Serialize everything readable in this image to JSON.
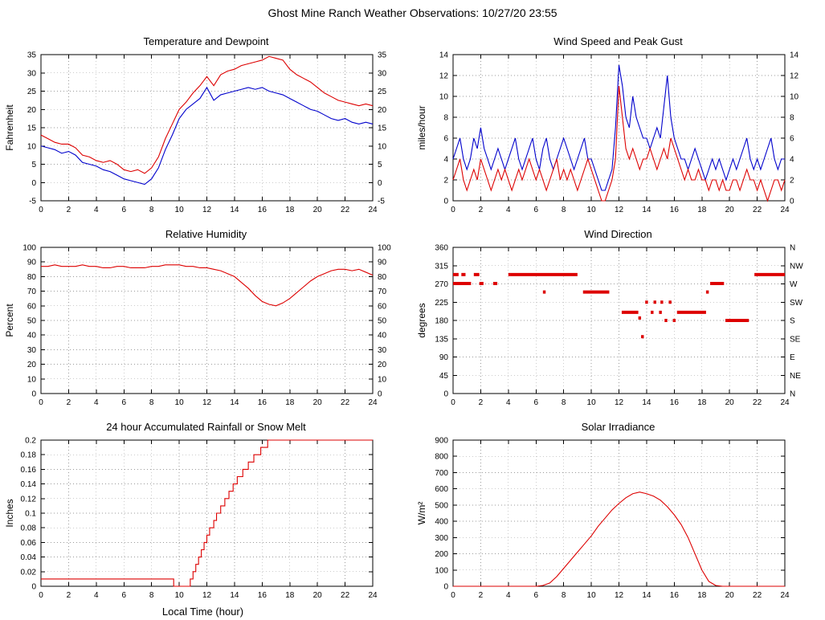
{
  "title": "Ghost Mine Ranch Weather Observations: 10/27/20 23:55",
  "colors": {
    "red": "#dd0000",
    "blue": "#0000cc",
    "grid": "#9a9a9a",
    "frame": "#000000"
  },
  "chart_data": [
    {
      "type": "line",
      "title": "Temperature and Dewpoint",
      "ylabel": "Fahrenheit",
      "xlabel": "",
      "ylim": [
        -5,
        35
      ],
      "ytick_step": 5,
      "xlim": [
        0,
        24
      ],
      "xtick_step": 2,
      "right_mirror": true,
      "legend_position": "none",
      "series": [
        {
          "name": "Temperature",
          "color": "#dd0000",
          "x_start": 0,
          "x_step": 0.5,
          "values": [
            13,
            12,
            11,
            10.5,
            10.5,
            9.5,
            7.5,
            7,
            6,
            5.5,
            6,
            5,
            3.5,
            3,
            3.5,
            2.5,
            4,
            7,
            12,
            16,
            20,
            22,
            24.5,
            26.5,
            29,
            26.5,
            29.5,
            30.5,
            31,
            32,
            32.5,
            33,
            33.5,
            34.5,
            34,
            33.5,
            31,
            29.5,
            28.5,
            27.5,
            26,
            24.5,
            23.5,
            22.5,
            22,
            21.5,
            21,
            21.5,
            21
          ]
        },
        {
          "name": "Dewpoint",
          "color": "#0000cc",
          "x_start": 0,
          "x_step": 0.5,
          "values": [
            10,
            9.5,
            9,
            8,
            8.5,
            7.5,
            5.5,
            5,
            4.5,
            3.5,
            3,
            2,
            1,
            0.5,
            0,
            -0.5,
            1,
            4,
            9,
            13,
            17.5,
            20,
            21.5,
            23,
            26,
            22.5,
            24,
            24.5,
            25,
            25.5,
            26,
            25.5,
            26,
            25,
            24.5,
            24,
            23,
            22,
            21,
            20,
            19.5,
            18.5,
            17.5,
            17,
            17.5,
            16.5,
            16,
            16.5,
            16
          ]
        }
      ]
    },
    {
      "type": "line",
      "title": "Wind Speed and Peak Gust",
      "ylabel": "miles/hour",
      "xlabel": "",
      "ylim": [
        0,
        14
      ],
      "ytick_step": 2,
      "xlim": [
        0,
        24
      ],
      "xtick_step": 2,
      "right_mirror": true,
      "legend_position": "none",
      "series": [
        {
          "name": "Peak Gust",
          "color": "#0000cc",
          "x_start": 0,
          "x_step": 0.25,
          "values": [
            4,
            5,
            6,
            4,
            3,
            4,
            6,
            5,
            7,
            5,
            4,
            3,
            4,
            5,
            4,
            3,
            4,
            5,
            6,
            4,
            3,
            4,
            5,
            6,
            4,
            3,
            5,
            6,
            4,
            3,
            4,
            5,
            6,
            5,
            4,
            3,
            4,
            5,
            6,
            4,
            4,
            3,
            2,
            1,
            1,
            2,
            3,
            7,
            13,
            11,
            8,
            7,
            10,
            8,
            7,
            6,
            6,
            5,
            6,
            7,
            6,
            9,
            12,
            8,
            6,
            5,
            4,
            4,
            3,
            4,
            5,
            4,
            3,
            2,
            3,
            4,
            3,
            4,
            3,
            2,
            3,
            4,
            3,
            4,
            5,
            6,
            4,
            3,
            4,
            3,
            4,
            5,
            6,
            4,
            3,
            4,
            4
          ]
        },
        {
          "name": "Wind Speed",
          "color": "#dd0000",
          "x_start": 0,
          "x_step": 0.25,
          "values": [
            2,
            3,
            4,
            2,
            1,
            2,
            3,
            2,
            4,
            3,
            2,
            1,
            2,
            3,
            2,
            3,
            2,
            1,
            2,
            3,
            2,
            3,
            4,
            3,
            2,
            3,
            2,
            1,
            2,
            3,
            4,
            2,
            3,
            2,
            3,
            2,
            1,
            2,
            3,
            4,
            3,
            2,
            1,
            0,
            0,
            1,
            2,
            4,
            11,
            8,
            5,
            4,
            5,
            4,
            3,
            4,
            4,
            5,
            4,
            3,
            4,
            5,
            4,
            6,
            5,
            4,
            3,
            2,
            3,
            2,
            2,
            3,
            2,
            2,
            1,
            2,
            2,
            1,
            2,
            1,
            1,
            2,
            2,
            1,
            2,
            3,
            2,
            2,
            1,
            2,
            1,
            0,
            1,
            2,
            2,
            1,
            2
          ]
        }
      ]
    },
    {
      "type": "line",
      "title": "Relative Humidity",
      "ylabel": "Percent",
      "xlabel": "",
      "ylim": [
        0,
        100
      ],
      "ytick_step": 10,
      "xlim": [
        0,
        24
      ],
      "xtick_step": 2,
      "right_mirror": true,
      "legend_position": "none",
      "series": [
        {
          "name": "Relative Humidity",
          "color": "#dd0000",
          "x_start": 0,
          "x_step": 0.5,
          "values": [
            87,
            87,
            88,
            87,
            87,
            87,
            88,
            87,
            87,
            86,
            86,
            87,
            87,
            86,
            86,
            86,
            87,
            87,
            88,
            88,
            88,
            87,
            87,
            86,
            86,
            85,
            84,
            82,
            80,
            76,
            72,
            67,
            63,
            61,
            60,
            62,
            65,
            69,
            73,
            77,
            80,
            82,
            84,
            85,
            85,
            84,
            85,
            83,
            81
          ]
        }
      ]
    },
    {
      "type": "scatter",
      "title": "Wind Direction",
      "ylabel": "degrees",
      "xlabel": "",
      "ylim": [
        0,
        360
      ],
      "ytick_step": 45,
      "xlim": [
        0,
        24
      ],
      "xtick_step": 2,
      "right_labels": [
        "N",
        "NE",
        "E",
        "SE",
        "S",
        "SW",
        "W",
        "NW",
        "N"
      ],
      "legend_position": "none",
      "series": [
        {
          "name": "Wind Direction",
          "color": "#dd0000",
          "segments": [
            [
              0,
              0.4,
              293
            ],
            [
              0.6,
              0.9,
              293
            ],
            [
              1.5,
              1.9,
              293
            ],
            [
              4,
              9,
              293
            ],
            [
              21.8,
              24,
              293
            ],
            [
              0,
              1.3,
              271
            ],
            [
              1.9,
              2.2,
              271
            ],
            [
              2.9,
              3.2,
              271
            ],
            [
              18.6,
              19.6,
              271
            ],
            [
              6.5,
              6.7,
              250
            ],
            [
              9.4,
              11.3,
              250
            ],
            [
              18.3,
              18.5,
              250
            ],
            [
              12.2,
              13.4,
              200
            ],
            [
              14.3,
              14.5,
              200
            ],
            [
              14.9,
              15.1,
              200
            ],
            [
              16.2,
              18.3,
              200
            ],
            [
              13.9,
              14.1,
              225
            ],
            [
              14.5,
              14.7,
              225
            ],
            [
              15.0,
              15.2,
              225
            ],
            [
              15.6,
              15.8,
              225
            ],
            [
              13.4,
              13.6,
              186
            ],
            [
              15.3,
              15.5,
              180
            ],
            [
              15.9,
              16.1,
              180
            ],
            [
              19.7,
              21.4,
              180
            ],
            [
              13.6,
              13.8,
              140
            ]
          ]
        }
      ]
    },
    {
      "type": "step",
      "title": "24 hour Accumulated Rainfall or Snow Melt",
      "ylabel": "Inches",
      "xlabel": "Local Time (hour)",
      "ylim": [
        0,
        0.2
      ],
      "ytick_step": 0.02,
      "xlim": [
        0,
        24
      ],
      "xtick_step": 2,
      "legend_position": "none",
      "series": [
        {
          "name": "Accumulated Rainfall",
          "color": "#dd0000",
          "points": [
            [
              0,
              0.01
            ],
            [
              9.5,
              0.01
            ],
            [
              9.6,
              0
            ],
            [
              10.6,
              0
            ],
            [
              10.8,
              0.01
            ],
            [
              11,
              0.02
            ],
            [
              11.2,
              0.03
            ],
            [
              11.4,
              0.04
            ],
            [
              11.6,
              0.05
            ],
            [
              11.8,
              0.06
            ],
            [
              12,
              0.07
            ],
            [
              12.2,
              0.08
            ],
            [
              12.5,
              0.09
            ],
            [
              12.7,
              0.1
            ],
            [
              13,
              0.11
            ],
            [
              13.3,
              0.12
            ],
            [
              13.6,
              0.13
            ],
            [
              13.9,
              0.14
            ],
            [
              14.2,
              0.15
            ],
            [
              14.6,
              0.16
            ],
            [
              15,
              0.17
            ],
            [
              15.4,
              0.18
            ],
            [
              15.9,
              0.19
            ],
            [
              16.4,
              0.2
            ],
            [
              24,
              0.2
            ]
          ]
        }
      ]
    },
    {
      "type": "line",
      "title": "Solar Irradiance",
      "ylabel": "W/m²",
      "xlabel": "",
      "ylim": [
        0,
        900
      ],
      "ytick_step": 100,
      "xlim": [
        0,
        24
      ],
      "xtick_step": 2,
      "legend_position": "none",
      "series": [
        {
          "name": "Solar Irradiance",
          "color": "#dd0000",
          "x_start": 0,
          "x_step": 0.5,
          "values": [
            0,
            0,
            0,
            0,
            0,
            0,
            0,
            0,
            0,
            0,
            0,
            0,
            0,
            5,
            20,
            60,
            110,
            160,
            210,
            260,
            310,
            370,
            420,
            470,
            510,
            545,
            570,
            580,
            570,
            555,
            530,
            490,
            440,
            380,
            300,
            200,
            100,
            30,
            5,
            0,
            0,
            0,
            0,
            0,
            0,
            0,
            0,
            0,
            0
          ]
        }
      ]
    }
  ]
}
